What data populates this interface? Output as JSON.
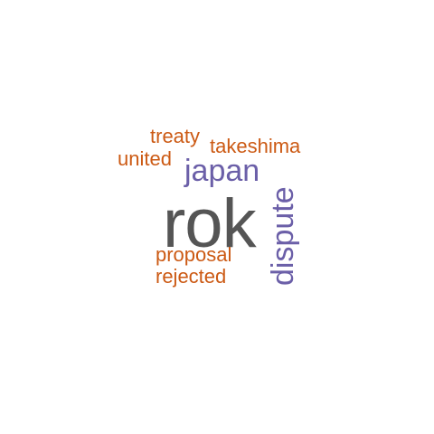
{
  "palette": {
    "background": "#ffffff",
    "dark_gray": "#555555",
    "purple": "#6b5fa8",
    "orange": "#cc5a14"
  },
  "words": {
    "rok": {
      "text": "rok",
      "color": "#555555",
      "orientation": "horizontal"
    },
    "dispute": {
      "text": "dispute",
      "color": "#6b5fa8",
      "orientation": "vertical"
    },
    "japan": {
      "text": "japan",
      "color": "#6b5fa8",
      "orientation": "horizontal"
    },
    "treaty": {
      "text": "treaty",
      "color": "#cc5a14",
      "orientation": "horizontal"
    },
    "takeshima": {
      "text": "takeshima",
      "color": "#cc5a14",
      "orientation": "horizontal"
    },
    "united": {
      "text": "united",
      "color": "#cc5a14",
      "orientation": "horizontal"
    },
    "proposal": {
      "text": "proposal",
      "color": "#cc5a14",
      "orientation": "horizontal"
    },
    "rejected": {
      "text": "rejected",
      "color": "#cc5a14",
      "orientation": "horizontal"
    }
  }
}
